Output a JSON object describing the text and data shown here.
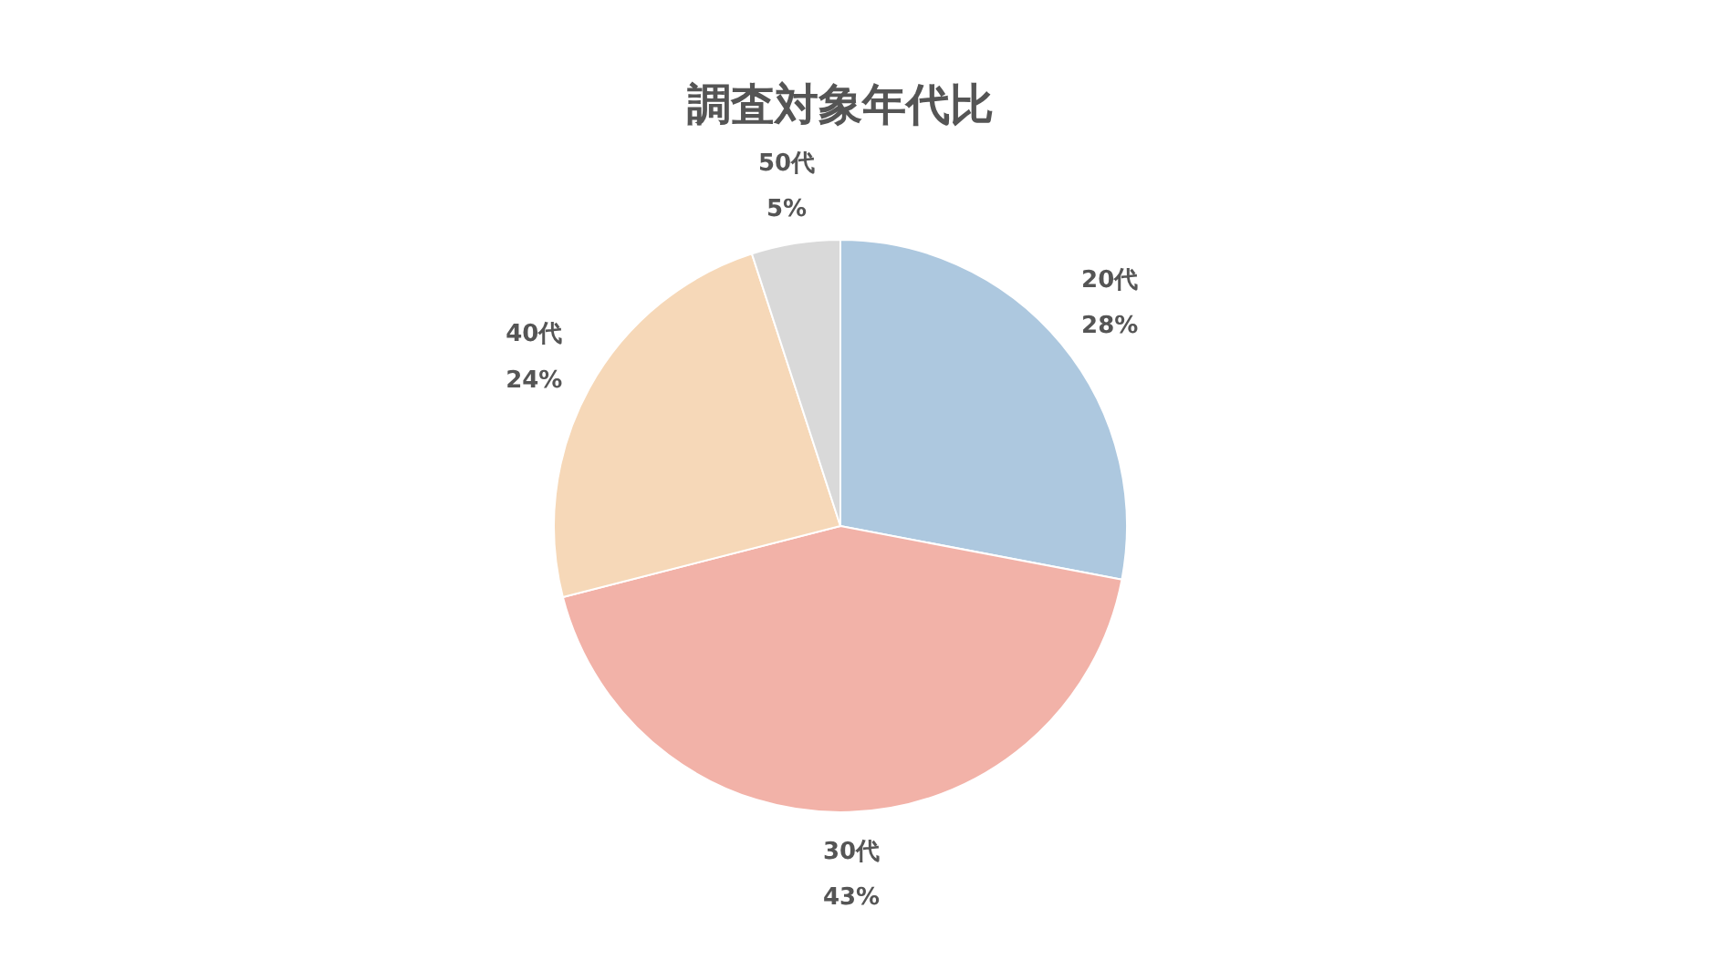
{
  "chart_data": {
    "type": "pie",
    "title": "調査対象年代比",
    "categories": [
      "20代",
      "30代",
      "40代",
      "50代"
    ],
    "values": [
      28,
      43,
      24,
      5
    ],
    "value_labels": [
      "28%",
      "43%",
      "24%",
      "5%"
    ],
    "colors": [
      "#adc8df",
      "#f2b2a8",
      "#f6d8b8",
      "#d9d9d9"
    ]
  }
}
